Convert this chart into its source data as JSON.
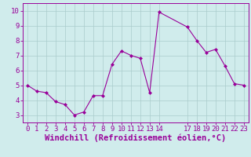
{
  "x": [
    0,
    1,
    2,
    3,
    4,
    5,
    6,
    7,
    8,
    9,
    10,
    11,
    12,
    13,
    14,
    17,
    18,
    19,
    20,
    21,
    22,
    23
  ],
  "y": [
    5.0,
    4.6,
    4.5,
    3.9,
    3.7,
    3.0,
    3.2,
    4.3,
    4.3,
    6.4,
    7.3,
    7.0,
    6.8,
    4.5,
    9.9,
    8.9,
    8.0,
    7.2,
    7.4,
    6.3,
    5.1,
    5.0
  ],
  "line_color": "#990099",
  "marker": "D",
  "marker_size": 2,
  "bg_color": "#d0ecec",
  "grid_color": "#aacccc",
  "xlabel": "Windchill (Refroidissement éolien,°C)",
  "xlabel_color": "#990099",
  "xticks": [
    0,
    1,
    2,
    3,
    4,
    5,
    6,
    7,
    8,
    9,
    10,
    11,
    12,
    13,
    14,
    17,
    18,
    19,
    20,
    21,
    22,
    23
  ],
  "yticks": [
    3,
    4,
    5,
    6,
    7,
    8,
    9,
    10
  ],
  "ylim": [
    2.5,
    10.5
  ],
  "xlim": [
    -0.5,
    23.5
  ],
  "tick_color": "#990099",
  "spine_color": "#990099",
  "tick_fontsize": 6.5,
  "xlabel_fontsize": 7.5
}
